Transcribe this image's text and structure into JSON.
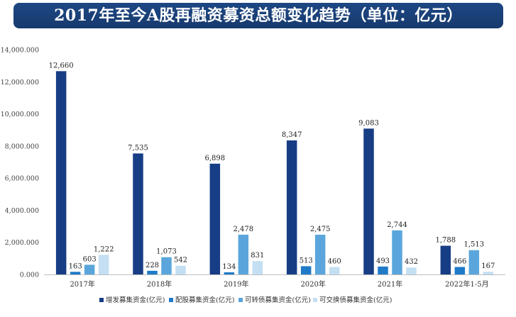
{
  "banner": {
    "title": "2017年至今A股再融资募资总额变化趋势（单位：亿元）"
  },
  "colors": {
    "banner_bg": "#1d4784",
    "series": [
      "#173d85",
      "#1f7ac8",
      "#5aa6dc",
      "#c4dff2"
    ]
  },
  "chart_data": {
    "type": "bar",
    "title": "2017年至今A股再融资募资总额变化趋势（单位：亿元）",
    "categories": [
      "2017年",
      "2018年",
      "2019年",
      "2020年",
      "2021年",
      "2022年1-5月"
    ],
    "series": [
      {
        "name": "增发募集资金(亿元)",
        "values": [
          12660,
          7535,
          6898,
          8347,
          9083,
          1788
        ],
        "labels": [
          "12,660",
          "7,535",
          "6,898",
          "8,347",
          "9,083",
          "1,788"
        ]
      },
      {
        "name": "配股募集资金(亿元)",
        "values": [
          163,
          228,
          134,
          513,
          493,
          466
        ],
        "labels": [
          "163",
          "228",
          "134",
          "513",
          "493",
          "466"
        ]
      },
      {
        "name": "可转债募集资金(亿元)",
        "values": [
          603,
          1073,
          2478,
          2475,
          2744,
          1513
        ],
        "labels": [
          "603",
          "1,073",
          "2,478",
          "2,475",
          "2,744",
          "1,513"
        ]
      },
      {
        "name": "可交换债募集资金(亿元)",
        "values": [
          1222,
          542,
          831,
          460,
          432,
          167
        ],
        "labels": [
          "1,222",
          "542",
          "831",
          "460",
          "432",
          "167"
        ]
      }
    ],
    "ylim": [
      0,
      14000
    ],
    "yticks": [
      0,
      2000,
      4000,
      6000,
      8000,
      10000,
      12000,
      14000
    ],
    "ytick_labels": [
      "0.000",
      "2,000.000",
      "4,000.000",
      "6,000.000",
      "8,000.000",
      "10,000.000",
      "12,000.000",
      "14,000.000"
    ],
    "grid": false,
    "legend_position": "bottom"
  }
}
